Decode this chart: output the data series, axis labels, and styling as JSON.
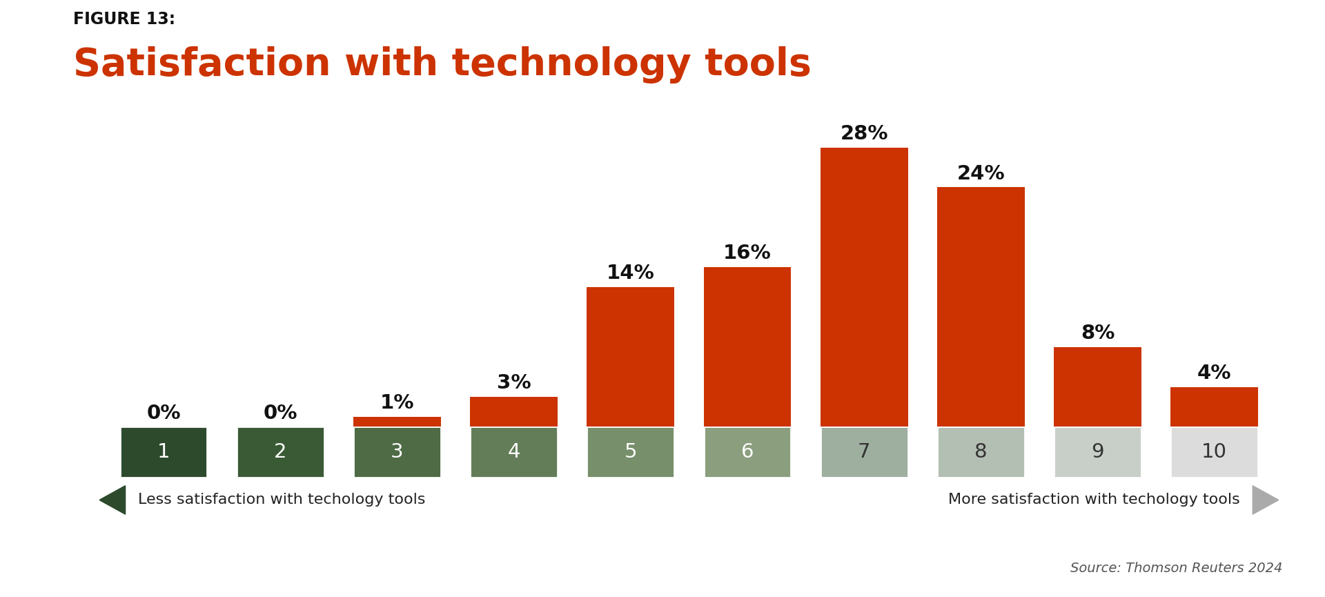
{
  "figure_label": "FIGURE 13:",
  "title": "Satisfaction with technology tools",
  "source": "Source: Thomson Reuters 2024",
  "categories": [
    1,
    2,
    3,
    4,
    5,
    6,
    7,
    8,
    9,
    10
  ],
  "values": [
    0,
    0,
    1,
    3,
    14,
    16,
    28,
    24,
    8,
    4
  ],
  "bar_color": "#CC3300",
  "tick_bg_colors": [
    "#2D4A2D",
    "#3A5A35",
    "#4E6B45",
    "#637D58",
    "#778F6A",
    "#8B9E7E",
    "#9EAFA0",
    "#B4BFB4",
    "#C8CFC8",
    "#DCDCDC"
  ],
  "tick_text_colors": [
    "#FFFFFF",
    "#FFFFFF",
    "#FFFFFF",
    "#FFFFFF",
    "#FFFFFF",
    "#FFFFFF",
    "#333333",
    "#333333",
    "#333333",
    "#333333"
  ],
  "left_arrow_label": "Less satisfaction with techology tools",
  "right_arrow_label": "More satisfaction with techology tools",
  "left_line_color": "#2D4A2D",
  "arrow_left_color": "#2D4A2D",
  "arrow_right_color": "#AAAAAA",
  "title_color": "#CC3300",
  "figure_label_color": "#111111",
  "value_label_color": "#111111",
  "background_color": "#FFFFFF",
  "bar_width": 0.75,
  "ylim": [
    0,
    32
  ]
}
